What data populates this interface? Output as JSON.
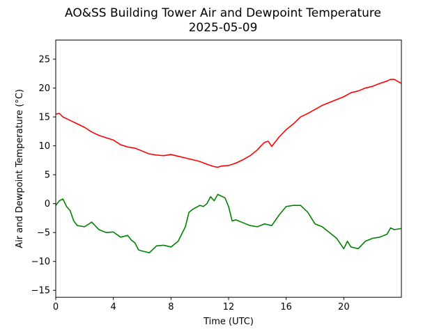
{
  "chart_data": {
    "type": "line",
    "title": "AO&SS Building Tower Air and Dewpoint Temperature",
    "subtitle": "2025-05-09",
    "xlabel": "Time (UTC)",
    "ylabel": "Air and Dewpoint Temperature (°C)",
    "xlim": [
      0,
      24
    ],
    "ylim": [
      -16.2,
      28.3
    ],
    "x_ticks": [
      0,
      4,
      8,
      12,
      16,
      20
    ],
    "y_ticks": [
      -15,
      -10,
      -5,
      0,
      5,
      10,
      15,
      20,
      25
    ],
    "grid": false,
    "legend": "none",
    "series": [
      {
        "color": "#ff0000",
        "x": [
          0,
          0.25,
          0.5,
          1,
          1.5,
          2,
          2.5,
          3,
          3.5,
          4,
          4.5,
          5,
          5.5,
          6,
          6.5,
          7,
          7.5,
          8,
          8.5,
          9,
          9.5,
          10,
          10.5,
          11,
          11.25,
          11.5,
          12,
          12.5,
          13,
          13.5,
          14,
          14.25,
          14.5,
          14.75,
          15,
          15.5,
          16,
          16.5,
          17,
          17.5,
          18,
          18.5,
          19,
          19.5,
          20,
          20.5,
          21,
          21.5,
          22,
          22.5,
          23,
          23.25,
          23.5,
          24
        ],
        "y": [
          15.5,
          15.6,
          15,
          14.4,
          13.8,
          13.2,
          12.4,
          11.8,
          11.4,
          11,
          10.2,
          9.8,
          9.6,
          9.1,
          8.6,
          8.4,
          8.3,
          8.5,
          8.2,
          7.9,
          7.6,
          7.3,
          6.8,
          6.4,
          6.3,
          6.5,
          6.6,
          7,
          7.6,
          8.3,
          9.3,
          10,
          10.6,
          10.8,
          9.9,
          11.5,
          12.8,
          13.8,
          15,
          15.6,
          16.3,
          17,
          17.5,
          18,
          18.5,
          19.2,
          19.5,
          20,
          20.3,
          20.8,
          21.2,
          21.5,
          21.5,
          20.8
        ]
      },
      {
        "color": "#008000",
        "x": [
          0,
          0.25,
          0.5,
          0.75,
          1,
          1.25,
          1.5,
          2,
          2.5,
          3,
          3.5,
          4,
          4.5,
          5,
          5.25,
          5.5,
          5.75,
          6,
          6.5,
          7,
          7.5,
          8,
          8.5,
          9,
          9.25,
          9.5,
          10,
          10.25,
          10.5,
          10.75,
          11,
          11.25,
          11.5,
          11.75,
          12,
          12.25,
          12.5,
          13,
          13.5,
          14,
          14.5,
          15,
          15.5,
          16,
          16.5,
          17,
          17.5,
          18,
          18.5,
          19,
          19.5,
          20,
          20.25,
          20.5,
          21,
          21.5,
          22,
          22.5,
          23,
          23.25,
          23.5,
          24
        ],
        "y": [
          -0.3,
          0.5,
          0.8,
          -0.5,
          -1.2,
          -3,
          -3.8,
          -4,
          -3.2,
          -4.5,
          -5,
          -4.9,
          -5.8,
          -5.5,
          -6.3,
          -6.8,
          -8,
          -8.2,
          -8.5,
          -7.3,
          -7.2,
          -7.5,
          -6.5,
          -4,
          -1.5,
          -1,
          -0.3,
          -0.5,
          0,
          1.2,
          0.5,
          1.6,
          1.3,
          1,
          -0.5,
          -3,
          -2.8,
          -3.3,
          -3.8,
          -4,
          -3.5,
          -3.8,
          -2,
          -0.5,
          -0.3,
          -0.3,
          -1.5,
          -3.5,
          -4,
          -5,
          -6,
          -7.8,
          -6.5,
          -7.5,
          -7.8,
          -6.5,
          -6,
          -5.8,
          -5.3,
          -4.2,
          -4.5,
          -4.3
        ]
      }
    ]
  }
}
